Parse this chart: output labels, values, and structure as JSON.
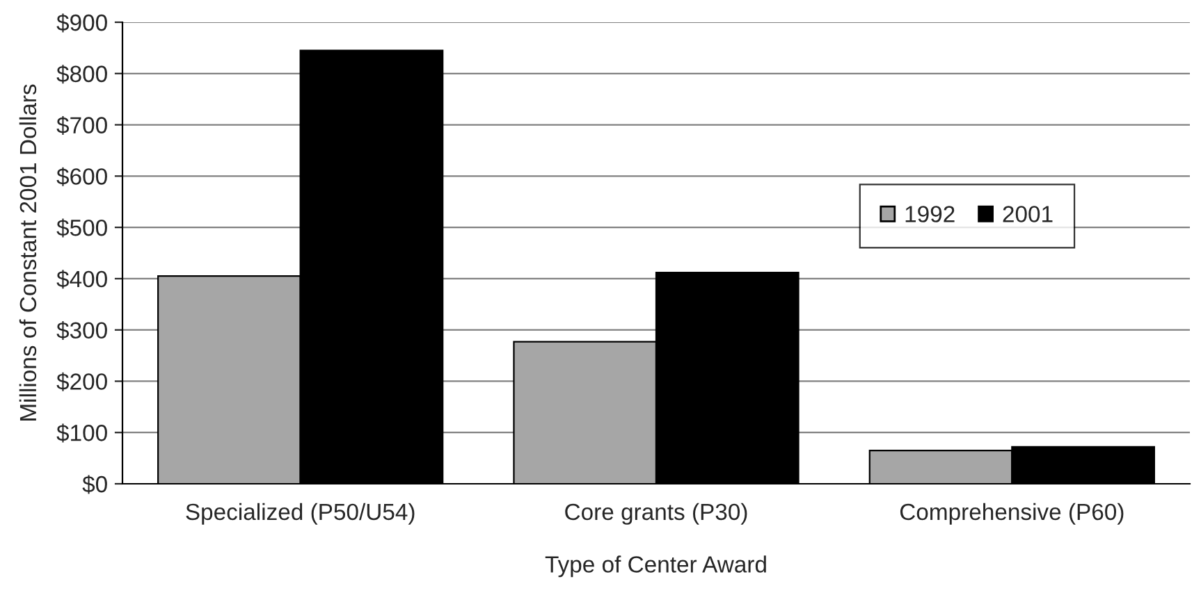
{
  "chart_data": {
    "type": "bar",
    "xlabel": "Type of Center Award",
    "ylabel": "Millions of Constant 2001 Dollars",
    "categories": [
      "Specialized (P50/U54)",
      "Core grants (P30)",
      "Comprehensive (P60)"
    ],
    "series": [
      {
        "name": "1992",
        "color": "#a6a6a6",
        "values": [
          405,
          277,
          65
        ]
      },
      {
        "name": "2001",
        "color": "#000000",
        "values": [
          845,
          412,
          72
        ]
      }
    ],
    "ylim": [
      0,
      900
    ],
    "yticks": [
      {
        "value": 0,
        "label": "$0"
      },
      {
        "value": 100,
        "label": "$100"
      },
      {
        "value": 200,
        "label": "$200"
      },
      {
        "value": 300,
        "label": "$300"
      },
      {
        "value": 400,
        "label": "$400"
      },
      {
        "value": 500,
        "label": "$500"
      },
      {
        "value": 600,
        "label": "$600"
      },
      {
        "value": 700,
        "label": "$700"
      },
      {
        "value": 800,
        "label": "$800"
      },
      {
        "value": 900,
        "label": "$900"
      }
    ],
    "grid": "y",
    "legend": "right"
  }
}
